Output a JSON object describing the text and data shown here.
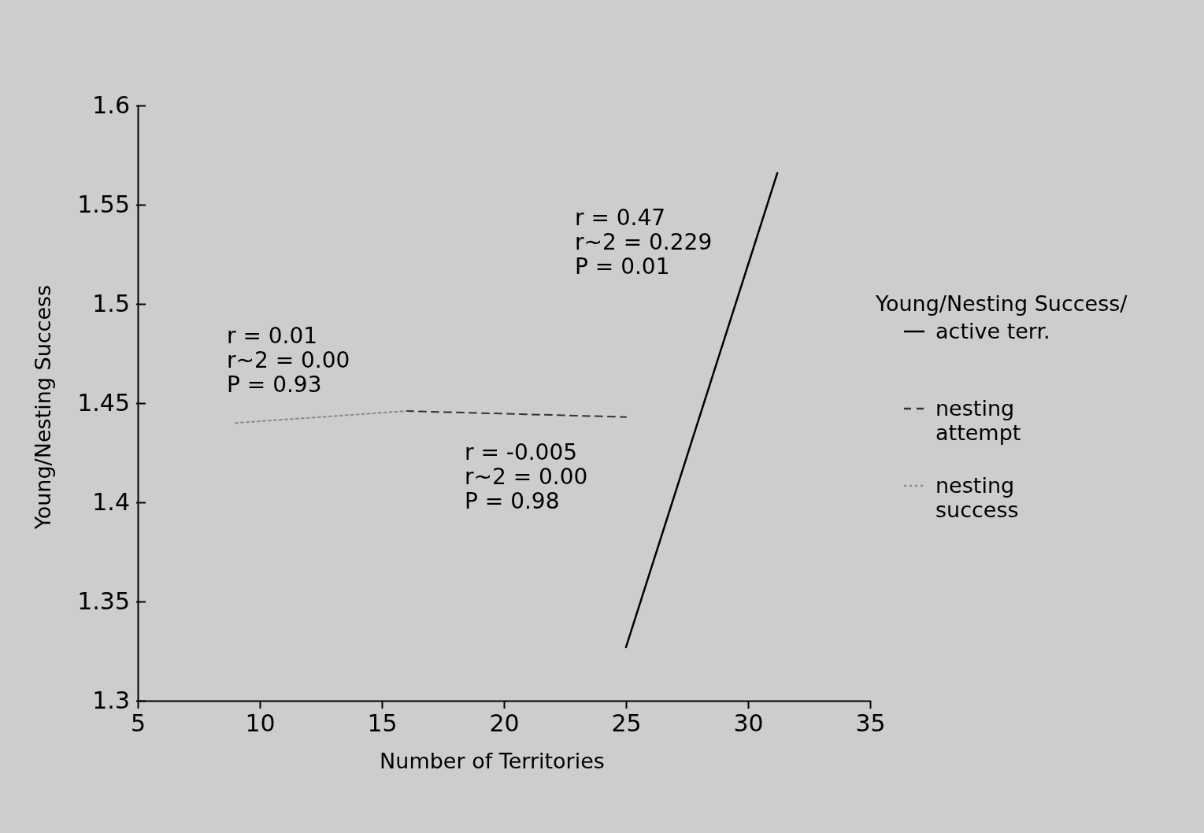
{
  "chart_data": {
    "type": "line",
    "xlabel": "Number of Territories",
    "ylabel": "Young/Nesting Success",
    "xlim": [
      5,
      35
    ],
    "xticks": [
      5,
      10,
      15,
      20,
      25,
      30,
      35
    ],
    "ylim": [
      1.3,
      1.6
    ],
    "yticks": [
      1.3,
      1.35,
      1.4,
      1.45,
      1.5,
      1.55,
      1.6
    ],
    "grid": false,
    "legend": "right",
    "legend_title": "Young/Nesting Success/",
    "series": [
      {
        "name": "active terr.",
        "color": "#000000",
        "line_style": "solid",
        "x": [
          25,
          31.2
        ],
        "values": [
          1.327,
          1.566
        ]
      },
      {
        "name": "nesting attempt",
        "color": "#333333",
        "line_style": "dashed",
        "x": [
          16,
          25
        ],
        "values": [
          1.446,
          1.443
        ]
      },
      {
        "name": "nesting success",
        "color": "#8a8a8a",
        "line_style": "dotted",
        "x": [
          9,
          16
        ],
        "values": [
          1.44,
          1.446
        ]
      }
    ],
    "annotations": [
      "r = 0.47\nr~2 = 0.229\nP = 0.01",
      "r = 0.01\nr~2 = 0.00\nP = 0.93",
      "r = -0.005\nr~2 = 0.00\nP = 0.98"
    ]
  }
}
